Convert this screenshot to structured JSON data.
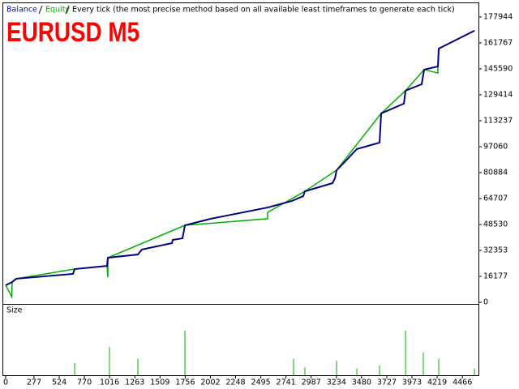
{
  "chart_data": [
    {
      "type": "line",
      "title": "EURUSD M5",
      "subtitle": "Every tick (the most precise method based on all available least timeframes to generate each tick)",
      "xlim": [
        0,
        4620
      ],
      "ylim": [
        0,
        186000
      ],
      "yticks": [
        0,
        16177,
        32353,
        48530,
        64707,
        80884,
        97060,
        113237,
        129414,
        145590,
        161767,
        177944
      ],
      "grid": false,
      "series": [
        {
          "name": "Equity",
          "color": "#00b000",
          "x": [
            0,
            60,
            63,
            103,
            674,
            991,
            999,
            1000,
            1753,
            2561,
            2562,
            2926,
            3236,
            3672,
            3910,
            4092,
            4226,
            4227,
            4235,
            4584
          ],
          "values": [
            10600,
            3500,
            12600,
            14700,
            20700,
            22700,
            15700,
            27800,
            48000,
            52100,
            56100,
            69200,
            82400,
            117800,
            132000,
            145100,
            143000,
            147100,
            158200,
            169400
          ]
        },
        {
          "name": "Balance",
          "color": "#000080",
          "x": [
            0,
            63,
            103,
            658,
            674,
            991,
            999,
            1293,
            1332,
            1626,
            1634,
            1729,
            1753,
            2006,
            2561,
            2799,
            2910,
            2926,
            3196,
            3220,
            3236,
            3315,
            3434,
            3656,
            3672,
            3894,
            3910,
            4068,
            4092,
            4227,
            4235,
            4584
          ],
          "values": [
            10600,
            12600,
            14700,
            17700,
            20700,
            22700,
            27800,
            29800,
            32900,
            36900,
            38900,
            39900,
            48000,
            52100,
            59100,
            63200,
            66200,
            69200,
            74300,
            77300,
            82400,
            87500,
            95600,
            99600,
            117800,
            123900,
            132000,
            136000,
            145100,
            147100,
            158200,
            169400
          ]
        }
      ]
    },
    {
      "type": "bar",
      "title": "Size",
      "color": "#00b000",
      "xlim": [
        0,
        4620
      ],
      "ylim": [
        0,
        11
      ],
      "xticks": [
        0,
        277,
        524,
        770,
        1016,
        1263,
        1509,
        1756,
        2002,
        2248,
        2495,
        2741,
        2987,
        3234,
        3480,
        3727,
        3973,
        4219,
        4466
      ],
      "x": [
        674,
        1015,
        1293,
        1753,
        2815,
        2926,
        3236,
        3434,
        3656,
        3910,
        4084,
        4235,
        4584
      ],
      "values": [
        2,
        4.6,
        2.7,
        7.3,
        2.7,
        1.3,
        2.4,
        1.1,
        1.6,
        7.3,
        3.7,
        2.7,
        1.1
      ]
    }
  ]
}
